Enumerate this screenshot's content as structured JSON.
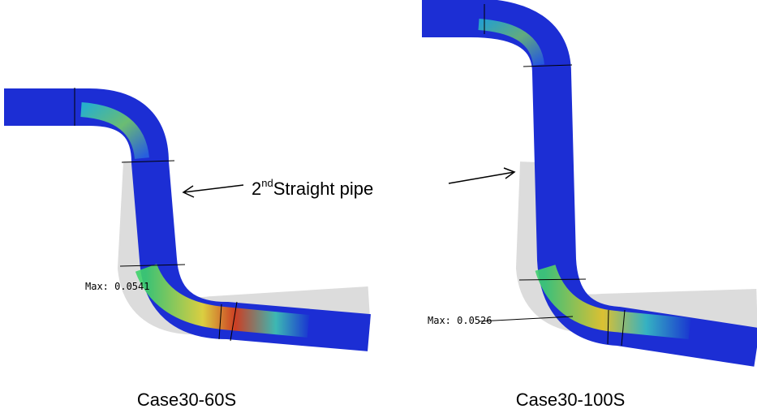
{
  "annotation": {
    "ordinal": "2",
    "superscript": "nd",
    "text": "Straight pipe"
  },
  "panels": [
    {
      "max_label": "Max: 0.0541",
      "caption": "Case30-60S"
    },
    {
      "max_label": "Max: 0.0526",
      "caption": "Case30-100S"
    }
  ]
}
